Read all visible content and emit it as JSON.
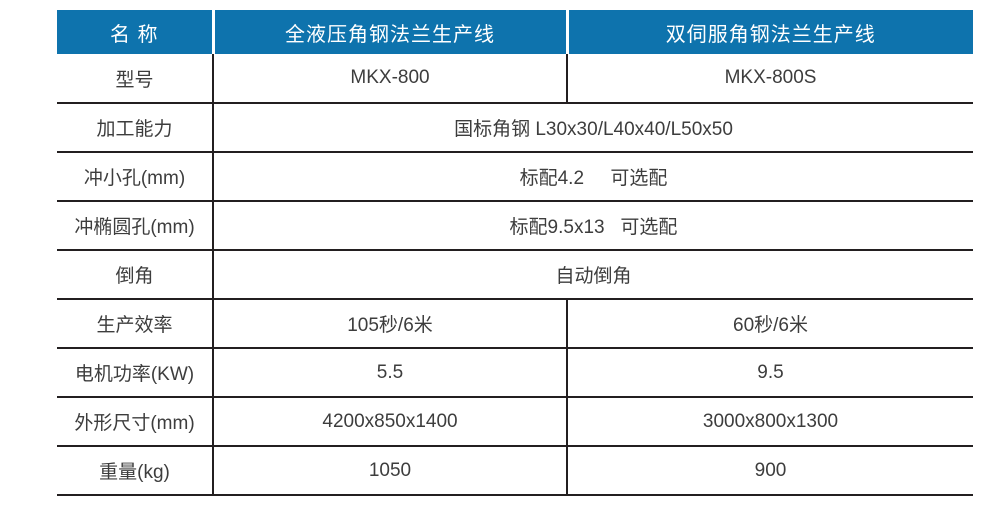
{
  "colors": {
    "header_blue": "#0e73ad",
    "grid_line": "#231f20",
    "body_text": "#3d3d3d"
  },
  "table": {
    "header": {
      "name": "名 称",
      "line1": "全液压角钢法兰生产线",
      "line2": "双伺服角钢法兰生产线"
    },
    "rows": [
      {
        "label": "型号",
        "span": false,
        "values": [
          "MKX-800",
          "MKX-800S"
        ]
      },
      {
        "label": "加工能力",
        "span": true,
        "values": [
          "国标角钢 L30x30/L40x40/L50x50"
        ]
      },
      {
        "label": "冲小孔(mm)",
        "span": true,
        "values": [
          "标配4.2     可选配"
        ]
      },
      {
        "label": "冲椭圆孔(mm)",
        "span": true,
        "values": [
          "标配9.5x13   可选配"
        ]
      },
      {
        "label": "倒角",
        "span": true,
        "values": [
          "自动倒角"
        ]
      },
      {
        "label": "生产效率",
        "span": false,
        "values": [
          "105秒/6米",
          "60秒/6米"
        ]
      },
      {
        "label": "电机功率(KW)",
        "span": false,
        "values": [
          "5.5",
          "9.5"
        ]
      },
      {
        "label": "外形尺寸(mm)",
        "span": false,
        "values": [
          "4200x850x1400",
          "3000x800x1300"
        ]
      },
      {
        "label": "重量(kg)",
        "span": false,
        "values": [
          "1050",
          "900"
        ]
      }
    ]
  }
}
